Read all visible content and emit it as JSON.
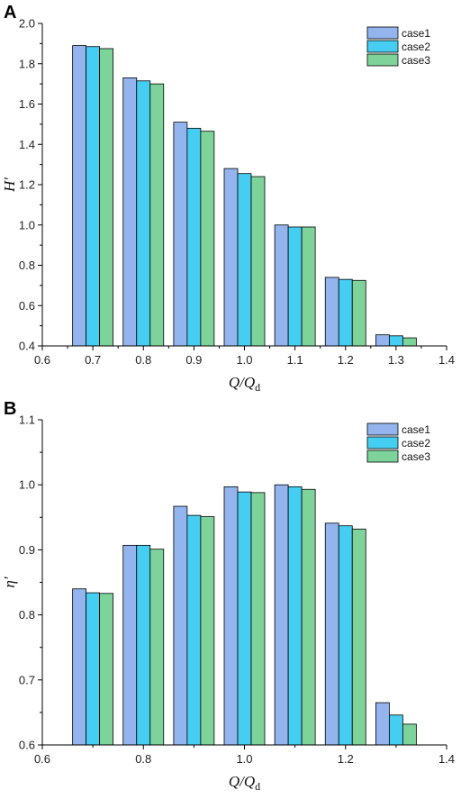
{
  "chart_data": [
    {
      "panel": "A",
      "type": "bar",
      "ylabel": "H′",
      "xlabel": {
        "main": "Q/Q",
        "sub": "d"
      },
      "xlim": [
        0.6,
        1.4
      ],
      "ylim": [
        0.4,
        2.0
      ],
      "xticks": [
        "0.6",
        "0.7",
        "0.8",
        "0.9",
        "1.0",
        "1.1",
        "1.2",
        "1.3",
        "1.4"
      ],
      "yticks": [
        "0.4",
        "0.6",
        "0.8",
        "1.0",
        "1.2",
        "1.4",
        "1.6",
        "1.8",
        "2.0"
      ],
      "legend_position": "top-right",
      "x": [
        0.7,
        0.8,
        0.9,
        1.0,
        1.1,
        1.2,
        1.3
      ],
      "series": [
        {
          "name": "case1",
          "color": "#94b4ee",
          "values": [
            1.89,
            1.73,
            1.51,
            1.28,
            1.0,
            0.74,
            0.455
          ]
        },
        {
          "name": "case2",
          "color": "#46cdf2",
          "values": [
            1.885,
            1.715,
            1.48,
            1.255,
            0.99,
            0.73,
            0.45
          ]
        },
        {
          "name": "case3",
          "color": "#7ed39a",
          "values": [
            1.875,
            1.7,
            1.465,
            1.24,
            0.99,
            0.725,
            0.44
          ]
        }
      ]
    },
    {
      "panel": "B",
      "type": "bar",
      "ylabel": "η′",
      "xlabel": {
        "main": "Q/Q",
        "sub": "d"
      },
      "xlim": [
        0.6,
        1.4
      ],
      "ylim": [
        0.6,
        1.1
      ],
      "xticks": [
        "0.6",
        "0.8",
        "1.0",
        "1.2",
        "1.4"
      ],
      "yticks": [
        "0.6",
        "0.7",
        "0.8",
        "0.9",
        "1.0",
        "1.1"
      ],
      "legend_position": "top-right",
      "x": [
        0.7,
        0.8,
        0.9,
        1.0,
        1.1,
        1.2,
        1.3
      ],
      "series": [
        {
          "name": "case1",
          "color": "#94b4ee",
          "values": [
            0.84,
            0.907,
            0.967,
            0.997,
            1.0,
            0.941,
            0.665
          ]
        },
        {
          "name": "case2",
          "color": "#46cdf2",
          "values": [
            0.834,
            0.907,
            0.953,
            0.989,
            0.997,
            0.937,
            0.646
          ]
        },
        {
          "name": "case3",
          "color": "#7ed39a",
          "values": [
            0.833,
            0.901,
            0.951,
            0.988,
            0.993,
            0.932,
            0.632
          ]
        }
      ]
    }
  ]
}
